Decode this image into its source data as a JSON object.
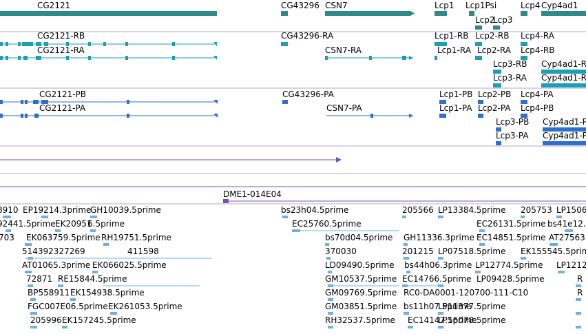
{
  "colors": {
    "gene": "#2e8a86",
    "transcriptA": "#1a9fb5",
    "transcriptB": "#2f6fcc",
    "line": "#7a4fb0",
    "est": "#6fb0de",
    "border": "#b7a7d4"
  },
  "genes": [
    {
      "label": "CG2121"
    },
    {
      "label": "CG43296"
    },
    {
      "label": "CSN7"
    },
    {
      "label": "Lcp1"
    },
    {
      "label": "Lcp1Psi"
    },
    {
      "label": "Lcp4"
    },
    {
      "label": "Cyp4ad1"
    },
    {
      "label": "Lcp2"
    },
    {
      "label": "Lcp3"
    }
  ],
  "transcripts_track1": [
    {
      "label": "CG2121-RB"
    },
    {
      "label": "CG2121-RA"
    },
    {
      "label": "CG43296-RA"
    },
    {
      "label": "CSN7-RA"
    },
    {
      "label": "Lcp1-RB"
    },
    {
      "label": "Lcp2-RB"
    },
    {
      "label": "Lcp4-RA"
    },
    {
      "label": "Lcp1-RA"
    },
    {
      "label": "Lcp2-RA"
    },
    {
      "label": "Lcp4-RB"
    },
    {
      "label": "Lcp3-RB"
    },
    {
      "label": "Cyp4ad1-R"
    },
    {
      "label": "Lcp3-RA"
    },
    {
      "label": "Cyp4ad1-R"
    }
  ],
  "transcripts_track2": [
    {
      "label": "CG2121-PB"
    },
    {
      "label": "CG2121-PA"
    },
    {
      "label": "CG43296-PA"
    },
    {
      "label": "CSN7-PA"
    },
    {
      "label": "Lcp1-PB"
    },
    {
      "label": "Lcp2-PB"
    },
    {
      "label": "Lcp4-PA"
    },
    {
      "label": "Lcp1-PA"
    },
    {
      "label": "Lcp2-PA"
    },
    {
      "label": "Lcp4-PB"
    },
    {
      "label": "Lcp3-PB"
    },
    {
      "label": "Cyp4ad1-P"
    },
    {
      "label": "Lcp3-PA"
    },
    {
      "label": "Cyp4ad1-P"
    }
  ],
  "clone": {
    "label": "DME1-014E04"
  },
  "ests": [
    {
      "label": "8910"
    },
    {
      "label": "EP19214.3prime"
    },
    {
      "label": "GH10039.5prime"
    },
    {
      "label": "bs23h04.5prime"
    },
    {
      "label": "205566"
    },
    {
      "label": "LP13384.5prime"
    },
    {
      "label": "205753"
    },
    {
      "label": "LP1506"
    },
    {
      "label": "92441.5prime"
    },
    {
      "label": "EK20951"
    },
    {
      "label": "6.5prime"
    },
    {
      "label": "EC25760.5prime"
    },
    {
      "label": "EC26131.5prime"
    },
    {
      "label": "bs41e12."
    },
    {
      "label": "703"
    },
    {
      "label": "EK063759.5prime"
    },
    {
      "label": "RH19751.5prime"
    },
    {
      "label": "bs70d04.5prime"
    },
    {
      "label": "GH11336.3prime"
    },
    {
      "label": "EC14851.5prime"
    },
    {
      "label": "AT27563"
    },
    {
      "label": "514392327269"
    },
    {
      "label": "411598"
    },
    {
      "label": "370030"
    },
    {
      "label": "201215"
    },
    {
      "label": "LP07518.5prime"
    },
    {
      "label": "EK155545.5prime"
    },
    {
      "label": "AT01065.3prime"
    },
    {
      "label": "EK066025.5prime"
    },
    {
      "label": "LD09490.5prime"
    },
    {
      "label": "bs44h06.3prime"
    },
    {
      "label": "LP12774.5prime"
    },
    {
      "label": "LP1212"
    },
    {
      "label": "72871"
    },
    {
      "label": "RE15844.5prime"
    },
    {
      "label": "GM10537.5prime"
    },
    {
      "label": "EC14766.5prime"
    },
    {
      "label": "LP09428.5prime"
    },
    {
      "label": "R"
    },
    {
      "label": "BP558911"
    },
    {
      "label": "EK154938.5prime"
    },
    {
      "label": "GM09769.5prime"
    },
    {
      "label": "RC0-DA0001-120700-111-C10"
    },
    {
      "label": "R"
    },
    {
      "label": "FGC007E06.5prime"
    },
    {
      "label": "EK261053.5prime"
    },
    {
      "label": "GM03851.5prime"
    },
    {
      "label": "bs11h07.5prime"
    },
    {
      "label": "LP11377.5prime"
    },
    {
      "label": "205996"
    },
    {
      "label": "EK157245.5prime"
    },
    {
      "label": "RH32537.5prime"
    },
    {
      "label": "EC14147.5prime"
    },
    {
      "label": "LP16078.5prime"
    }
  ]
}
